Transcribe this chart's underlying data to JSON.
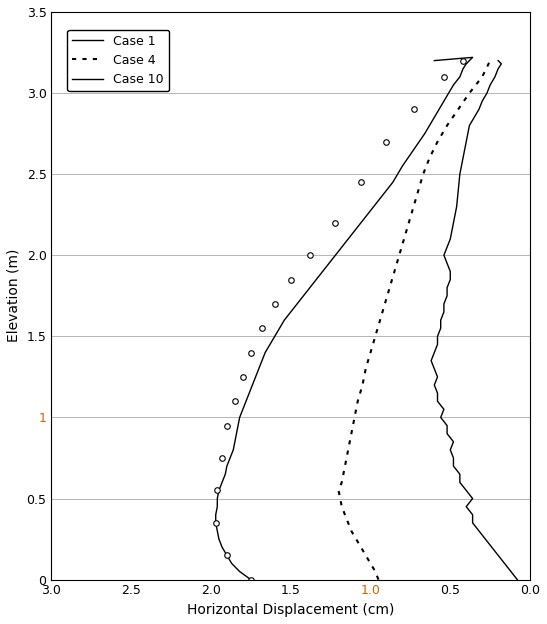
{
  "xlabel": "Horizontal Displacement (cm)",
  "ylabel": "Elevation (m)",
  "xlim": [
    3,
    0
  ],
  "ylim": [
    0,
    3.5
  ],
  "xticks": [
    3,
    2.5,
    2,
    1.5,
    1,
    0.5,
    0
  ],
  "yticks": [
    0,
    0.5,
    1.0,
    1.5,
    2.0,
    2.5,
    3.0,
    3.5
  ],
  "background_color": "#ffffff",
  "ylabel_color": "#000000",
  "ytick_1_color": "#cc6600",
  "case1": {
    "label": "Case 1",
    "linestyle": "-",
    "color": "#000000",
    "linewidth": 1.0,
    "x": [
      0.08,
      0.12,
      0.16,
      0.2,
      0.24,
      0.28,
      0.32,
      0.36,
      0.36,
      0.4,
      0.36,
      0.4,
      0.44,
      0.44,
      0.48,
      0.48,
      0.5,
      0.48,
      0.52,
      0.52,
      0.56,
      0.54,
      0.58,
      0.58,
      0.6,
      0.58,
      0.6,
      0.62,
      0.6,
      0.58,
      0.58,
      0.56,
      0.56,
      0.54,
      0.54,
      0.52,
      0.52,
      0.5,
      0.5,
      0.52,
      0.54,
      0.5,
      0.48,
      0.46,
      0.45,
      0.44,
      0.43,
      0.42,
      0.4,
      0.38,
      0.35,
      0.32,
      0.3,
      0.27,
      0.25,
      0.22,
      0.2,
      0.18,
      0.2
    ],
    "y": [
      0.0,
      0.05,
      0.1,
      0.15,
      0.2,
      0.25,
      0.3,
      0.35,
      0.4,
      0.45,
      0.5,
      0.55,
      0.6,
      0.65,
      0.7,
      0.75,
      0.8,
      0.85,
      0.9,
      0.95,
      1.0,
      1.05,
      1.1,
      1.15,
      1.2,
      1.25,
      1.3,
      1.35,
      1.4,
      1.45,
      1.5,
      1.55,
      1.6,
      1.65,
      1.7,
      1.75,
      1.8,
      1.85,
      1.9,
      1.95,
      2.0,
      2.1,
      2.2,
      2.3,
      2.4,
      2.5,
      2.55,
      2.6,
      2.7,
      2.8,
      2.85,
      2.9,
      2.95,
      3.0,
      3.05,
      3.1,
      3.15,
      3.18,
      3.2
    ]
  },
  "case4": {
    "label": "Case 4",
    "linestyle": ":",
    "color": "#000000",
    "linewidth": 1.5,
    "x": [
      0.95,
      0.97,
      1.0,
      1.03,
      1.06,
      1.09,
      1.12,
      1.14,
      1.16,
      1.18,
      1.19,
      1.2,
      1.18,
      1.16,
      1.14,
      1.12,
      1.1,
      1.08,
      1.05,
      1.03,
      1.0,
      0.97,
      0.94,
      0.91,
      0.88,
      0.85,
      0.82,
      0.79,
      0.76,
      0.73,
      0.7,
      0.67,
      0.63,
      0.58,
      0.52,
      0.45,
      0.38,
      0.3,
      0.25
    ],
    "y": [
      0.0,
      0.05,
      0.1,
      0.15,
      0.2,
      0.25,
      0.3,
      0.35,
      0.4,
      0.45,
      0.5,
      0.55,
      0.6,
      0.7,
      0.8,
      0.9,
      1.0,
      1.1,
      1.2,
      1.3,
      1.4,
      1.5,
      1.6,
      1.7,
      1.8,
      1.9,
      2.0,
      2.1,
      2.2,
      2.3,
      2.4,
      2.5,
      2.6,
      2.7,
      2.8,
      2.9,
      3.0,
      3.1,
      3.2
    ]
  },
  "case10": {
    "label": "Case 10",
    "linestyle": "-",
    "color": "#000000",
    "linewidth": 1.0,
    "x": [
      1.75,
      1.82,
      1.87,
      1.9,
      1.93,
      1.95,
      1.96,
      1.97,
      1.97,
      1.96,
      1.96,
      1.95,
      1.93,
      1.91,
      1.9,
      1.88,
      1.86,
      1.85,
      1.84,
      1.83,
      1.82,
      1.8,
      1.78,
      1.76,
      1.74,
      1.72,
      1.7,
      1.68,
      1.66,
      1.63,
      1.6,
      1.57,
      1.54,
      1.5,
      1.46,
      1.42,
      1.38,
      1.34,
      1.3,
      1.26,
      1.22,
      1.18,
      1.14,
      1.1,
      1.06,
      1.02,
      0.98,
      0.94,
      0.9,
      0.86,
      0.8,
      0.73,
      0.66,
      0.6,
      0.54,
      0.48,
      0.44,
      0.42,
      0.4,
      0.38,
      0.36,
      0.6
    ],
    "y": [
      0.0,
      0.05,
      0.1,
      0.15,
      0.2,
      0.25,
      0.3,
      0.35,
      0.4,
      0.45,
      0.5,
      0.55,
      0.6,
      0.65,
      0.7,
      0.75,
      0.8,
      0.85,
      0.9,
      0.95,
      1.0,
      1.05,
      1.1,
      1.15,
      1.2,
      1.25,
      1.3,
      1.35,
      1.4,
      1.45,
      1.5,
      1.55,
      1.6,
      1.65,
      1.7,
      1.75,
      1.8,
      1.85,
      1.9,
      1.95,
      2.0,
      2.05,
      2.1,
      2.15,
      2.2,
      2.25,
      2.3,
      2.35,
      2.4,
      2.45,
      2.55,
      2.65,
      2.75,
      2.85,
      2.95,
      3.05,
      3.1,
      3.15,
      3.18,
      3.2,
      3.22,
      3.2
    ],
    "marker_x": [
      1.75,
      1.9,
      1.97,
      1.96,
      1.93,
      1.9,
      1.85,
      1.8,
      1.75,
      1.68,
      1.6,
      1.5,
      1.38,
      1.22,
      1.06,
      0.9,
      0.73,
      0.54,
      0.42
    ],
    "marker_y": [
      0.0,
      0.15,
      0.35,
      0.55,
      0.75,
      0.95,
      1.1,
      1.25,
      1.4,
      1.55,
      1.7,
      1.85,
      2.0,
      2.2,
      2.45,
      2.7,
      2.9,
      3.1,
      3.2
    ]
  }
}
